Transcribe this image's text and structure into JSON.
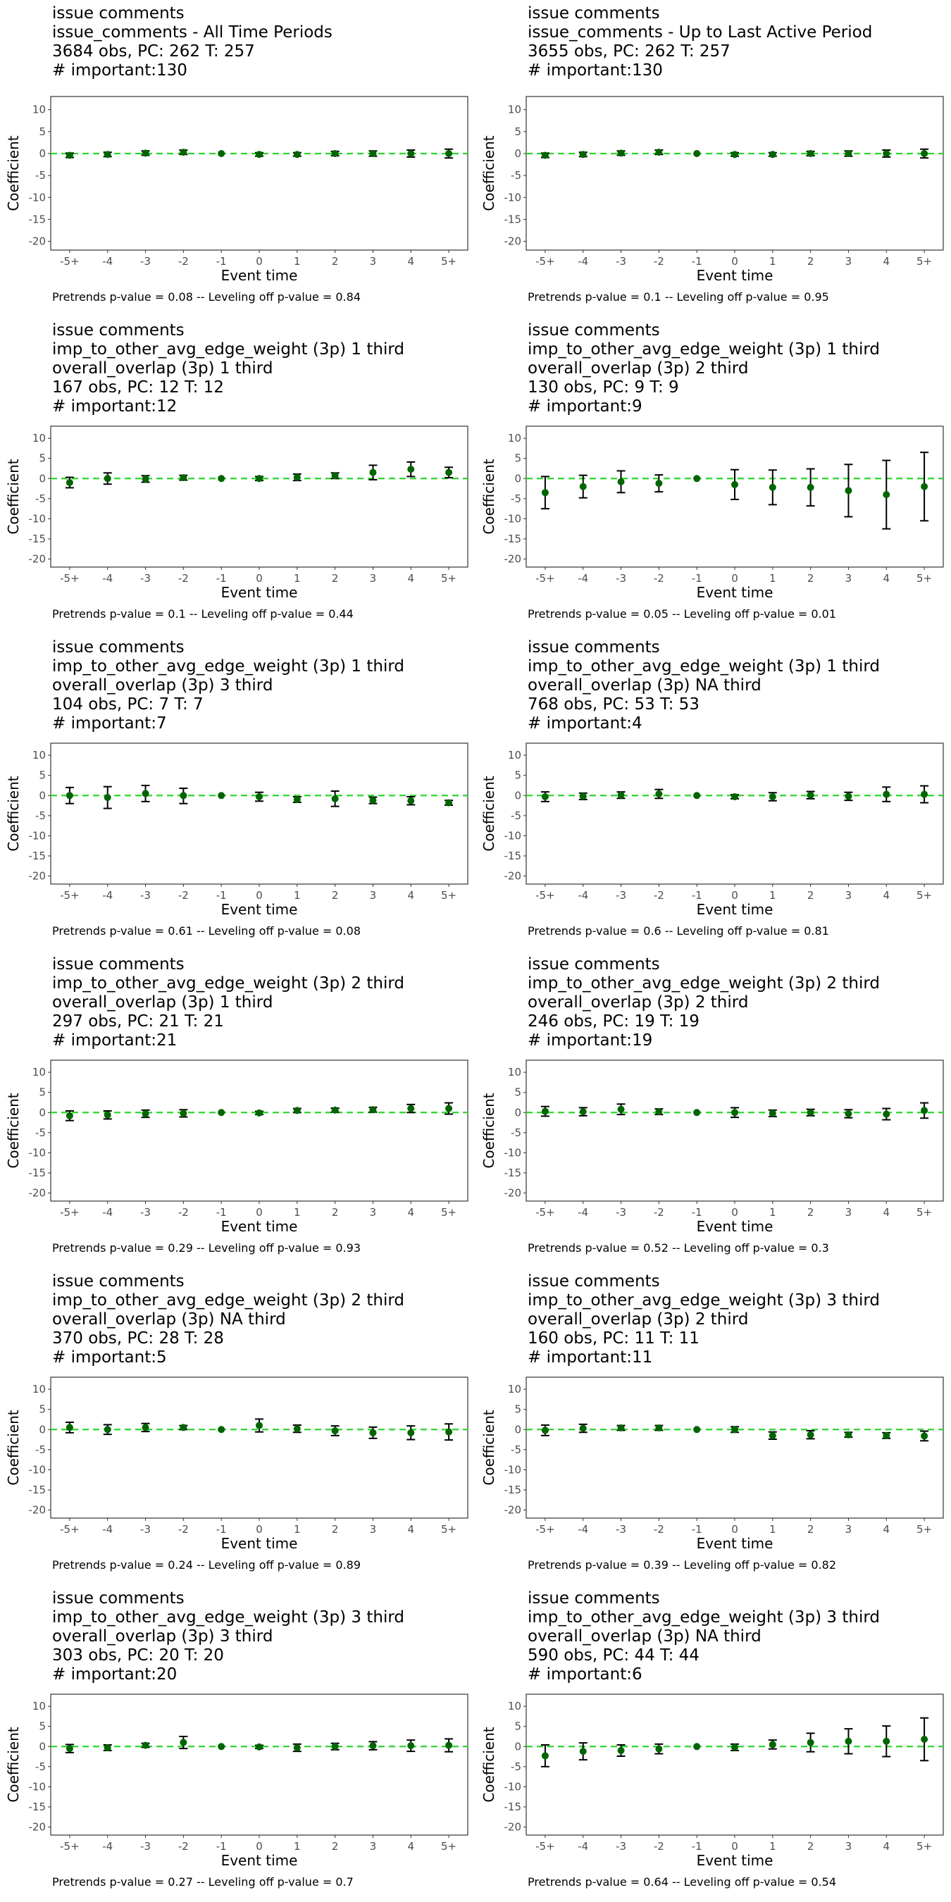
{
  "chart_data": [
    {
      "type": "scatter",
      "title_lines": [
        "issue comments",
        "issue_comments - All Time Periods",
        "3684 obs, PC: 262 T: 257",
        "# important:130"
      ],
      "xlabel": "Event time",
      "ylabel": "Coefficient",
      "categories": [
        "-5+",
        "-4",
        "-3",
        "-2",
        "-1",
        "0",
        "1",
        "2",
        "3",
        "4",
        "5+"
      ],
      "yticks": [
        10,
        5,
        0,
        -5,
        -10,
        -15,
        -20
      ],
      "ylim": [
        -22,
        13
      ],
      "reference_line": 0,
      "values": [
        -0.4,
        -0.2,
        0.1,
        0.3,
        0,
        -0.2,
        -0.2,
        0,
        0,
        0,
        0
      ],
      "lower": [
        -0.9,
        -0.7,
        -0.4,
        -0.2,
        0,
        -0.6,
        -0.6,
        -0.5,
        -0.6,
        -0.8,
        -1.0
      ],
      "upper": [
        0.1,
        0.3,
        0.6,
        0.8,
        0,
        0.2,
        0.2,
        0.5,
        0.6,
        0.8,
        1.0
      ],
      "footer": "Pretrends p-value = 0.08 -- Leveling off p-value = 0.84"
    },
    {
      "type": "scatter",
      "title_lines": [
        "issue comments",
        "issue_comments - Up to Last Active Period",
        "3655 obs, PC: 262 T: 257",
        "# important:130"
      ],
      "xlabel": "Event time",
      "ylabel": "Coefficient",
      "categories": [
        "-5+",
        "-4",
        "-3",
        "-2",
        "-1",
        "0",
        "1",
        "2",
        "3",
        "4",
        "5+"
      ],
      "yticks": [
        10,
        5,
        0,
        -5,
        -10,
        -15,
        -20
      ],
      "ylim": [
        -22,
        13
      ],
      "reference_line": 0,
      "values": [
        -0.4,
        -0.2,
        0.1,
        0.3,
        0,
        -0.2,
        -0.2,
        0,
        0,
        0,
        0
      ],
      "lower": [
        -0.9,
        -0.7,
        -0.4,
        -0.2,
        0,
        -0.6,
        -0.6,
        -0.5,
        -0.6,
        -0.8,
        -1.0
      ],
      "upper": [
        0.1,
        0.3,
        0.6,
        0.8,
        0,
        0.2,
        0.2,
        0.5,
        0.6,
        0.8,
        1.0
      ],
      "footer": "Pretrends p-value = 0.1 -- Leveling off p-value = 0.95"
    },
    {
      "type": "scatter",
      "title_lines": [
        "issue comments",
        "imp_to_other_avg_edge_weight (3p) 1 third",
        "overall_overlap (3p) 1 third",
        "167 obs, PC: 12 T: 12",
        "# important:12"
      ],
      "xlabel": "Event time",
      "ylabel": "Coefficient",
      "categories": [
        "-5+",
        "-4",
        "-3",
        "-2",
        "-1",
        "0",
        "1",
        "2",
        "3",
        "4",
        "5+"
      ],
      "yticks": [
        10,
        5,
        0,
        -5,
        -10,
        -15,
        -20
      ],
      "ylim": [
        -22,
        13
      ],
      "reference_line": 0,
      "values": [
        -1.0,
        0,
        -0.1,
        0.2,
        0,
        0,
        0.3,
        0.7,
        1.5,
        2.3,
        1.5
      ],
      "lower": [
        -2.3,
        -1.4,
        -0.9,
        -0.4,
        0,
        -0.5,
        -0.5,
        0,
        -0.3,
        0.5,
        0.2
      ],
      "upper": [
        0.3,
        1.4,
        0.7,
        0.8,
        0,
        0.5,
        1.1,
        1.4,
        3.3,
        4.1,
        2.8
      ],
      "footer": "Pretrends p-value = 0.1 -- Leveling off p-value = 0.44"
    },
    {
      "type": "scatter",
      "title_lines": [
        "issue comments",
        "imp_to_other_avg_edge_weight (3p) 1 third",
        "overall_overlap (3p) 2 third",
        "130 obs, PC: 9 T: 9",
        "# important:9"
      ],
      "xlabel": "Event time",
      "ylabel": "Coefficient",
      "categories": [
        "-5+",
        "-4",
        "-3",
        "-2",
        "-1",
        "0",
        "1",
        "2",
        "3",
        "4",
        "5+"
      ],
      "yticks": [
        10,
        5,
        0,
        -5,
        -10,
        -15,
        -20
      ],
      "ylim": [
        -22,
        13
      ],
      "reference_line": 0,
      "values": [
        -3.5,
        -2.0,
        -0.8,
        -1.2,
        0,
        -1.5,
        -2.2,
        -2.2,
        -3.0,
        -4.0,
        -2.0
      ],
      "lower": [
        -7.5,
        -4.8,
        -3.5,
        -3.3,
        0,
        -5.2,
        -6.5,
        -6.8,
        -9.5,
        -12.5,
        -10.5
      ],
      "upper": [
        0.5,
        0.8,
        1.9,
        0.9,
        0,
        2.2,
        2.1,
        2.4,
        3.5,
        4.5,
        6.5
      ],
      "footer": "Pretrends p-value = 0.05 -- Leveling off p-value = 0.01"
    },
    {
      "type": "scatter",
      "title_lines": [
        "issue comments",
        "imp_to_other_avg_edge_weight (3p) 1 third",
        "overall_overlap (3p) 3 third",
        "104 obs, PC: 7 T: 7",
        "# important:7"
      ],
      "xlabel": "Event time",
      "ylabel": "Coefficient",
      "categories": [
        "-5+",
        "-4",
        "-3",
        "-2",
        "-1",
        "0",
        "1",
        "2",
        "3",
        "4",
        "5+"
      ],
      "yticks": [
        10,
        5,
        0,
        -5,
        -10,
        -15,
        -20
      ],
      "ylim": [
        -22,
        13
      ],
      "reference_line": 0,
      "values": [
        0,
        -0.5,
        0.5,
        0,
        0,
        -0.3,
        -1.0,
        -0.8,
        -1.2,
        -1.3,
        -1.8
      ],
      "lower": [
        -2.0,
        -3.2,
        -1.5,
        -2.0,
        0,
        -1.4,
        -1.7,
        -2.7,
        -2.0,
        -2.3,
        -2.4
      ],
      "upper": [
        2.0,
        2.2,
        2.5,
        1.8,
        0,
        0.8,
        -0.3,
        1.1,
        -0.4,
        -0.3,
        -1.2
      ],
      "footer": "Pretrends p-value = 0.61 -- Leveling off p-value = 0.08"
    },
    {
      "type": "scatter",
      "title_lines": [
        "issue comments",
        "imp_to_other_avg_edge_weight (3p) 1 third",
        "overall_overlap (3p) NA third",
        "768 obs, PC: 53 T: 53",
        "# important:4"
      ],
      "xlabel": "Event time",
      "ylabel": "Coefficient",
      "categories": [
        "-5+",
        "-4",
        "-3",
        "-2",
        "-1",
        "0",
        "1",
        "2",
        "3",
        "4",
        "5+"
      ],
      "yticks": [
        10,
        5,
        0,
        -5,
        -10,
        -15,
        -20
      ],
      "ylim": [
        -22,
        13
      ],
      "reference_line": 0,
      "values": [
        -0.3,
        -0.2,
        0.1,
        0.4,
        0,
        -0.3,
        -0.3,
        0.1,
        -0.2,
        0.3,
        0.3
      ],
      "lower": [
        -1.5,
        -1.0,
        -0.7,
        -0.7,
        0,
        -0.8,
        -1.3,
        -0.8,
        -1.2,
        -1.5,
        -1.8
      ],
      "upper": [
        0.9,
        0.6,
        0.9,
        1.5,
        0,
        0.2,
        0.7,
        1.0,
        0.8,
        2.1,
        2.4
      ],
      "footer": "Pretrends p-value = 0.6 -- Leveling off p-value = 0.81"
    },
    {
      "type": "scatter",
      "title_lines": [
        "issue comments",
        "imp_to_other_avg_edge_weight (3p) 2 third",
        "overall_overlap (3p) 1 third",
        "297 obs, PC: 21 T: 21",
        "# important:21"
      ],
      "xlabel": "Event time",
      "ylabel": "Coefficient",
      "categories": [
        "-5+",
        "-4",
        "-3",
        "-2",
        "-1",
        "0",
        "1",
        "2",
        "3",
        "4",
        "5+"
      ],
      "yticks": [
        10,
        5,
        0,
        -5,
        -10,
        -15,
        -20
      ],
      "ylim": [
        -22,
        13
      ],
      "reference_line": 0,
      "values": [
        -0.8,
        -0.6,
        -0.3,
        -0.2,
        0,
        -0.1,
        0.5,
        0.6,
        0.7,
        1.0,
        1.0
      ],
      "lower": [
        -2.0,
        -1.6,
        -1.2,
        -1.1,
        0,
        -0.5,
        0,
        0.1,
        0.1,
        0,
        -0.4
      ],
      "upper": [
        0.4,
        0.4,
        0.6,
        0.7,
        0,
        0.3,
        1.0,
        1.1,
        1.3,
        2.0,
        2.4
      ],
      "footer": "Pretrends p-value = 0.29 -- Leveling off p-value = 0.93"
    },
    {
      "type": "scatter",
      "title_lines": [
        "issue comments",
        "imp_to_other_avg_edge_weight (3p) 2 third",
        "overall_overlap (3p) 2 third",
        "246 obs, PC: 19 T: 19",
        "# important:19"
      ],
      "xlabel": "Event time",
      "ylabel": "Coefficient",
      "categories": [
        "-5+",
        "-4",
        "-3",
        "-2",
        "-1",
        "0",
        "1",
        "2",
        "3",
        "4",
        "5+"
      ],
      "yticks": [
        10,
        5,
        0,
        -5,
        -10,
        -15,
        -20
      ],
      "ylim": [
        -22,
        13
      ],
      "reference_line": 0,
      "values": [
        0.3,
        0.2,
        0.8,
        0.2,
        0,
        0,
        -0.2,
        0,
        -0.3,
        -0.4,
        0.5
      ],
      "lower": [
        -0.9,
        -0.8,
        -0.5,
        -0.5,
        0,
        -1.2,
        -1.0,
        -0.8,
        -1.3,
        -1.8,
        -1.4
      ],
      "upper": [
        1.5,
        1.2,
        2.1,
        0.9,
        0,
        1.2,
        0.6,
        0.8,
        0.7,
        1.0,
        2.4
      ],
      "footer": "Pretrends p-value = 0.52 -- Leveling off p-value = 0.3"
    },
    {
      "type": "scatter",
      "title_lines": [
        "issue comments",
        "imp_to_other_avg_edge_weight (3p) 2 third",
        "overall_overlap (3p) NA third",
        "370 obs, PC: 28 T: 28",
        "# important:5"
      ],
      "xlabel": "Event time",
      "ylabel": "Coefficient",
      "categories": [
        "-5+",
        "-4",
        "-3",
        "-2",
        "-1",
        "0",
        "1",
        "2",
        "3",
        "4",
        "5+"
      ],
      "yticks": [
        10,
        5,
        0,
        -5,
        -10,
        -15,
        -20
      ],
      "ylim": [
        -22,
        13
      ],
      "reference_line": 0,
      "values": [
        0.5,
        0,
        0.5,
        0.5,
        0,
        1.0,
        0.2,
        -0.3,
        -0.8,
        -0.8,
        -0.6
      ],
      "lower": [
        -0.8,
        -1.2,
        -0.5,
        0,
        0,
        -0.6,
        -0.7,
        -1.5,
        -2.2,
        -2.5,
        -2.6
      ],
      "upper": [
        1.8,
        1.2,
        1.5,
        1.0,
        0,
        2.6,
        1.1,
        0.9,
        0.6,
        0.9,
        1.4
      ],
      "footer": "Pretrends p-value = 0.24 -- Leveling off p-value = 0.89"
    },
    {
      "type": "scatter",
      "title_lines": [
        "issue comments",
        "imp_to_other_avg_edge_weight (3p) 3 third",
        "overall_overlap (3p) 2 third",
        "160 obs, PC: 11 T: 11",
        "# important:11"
      ],
      "xlabel": "Event time",
      "ylabel": "Coefficient",
      "categories": [
        "-5+",
        "-4",
        "-3",
        "-2",
        "-1",
        "0",
        "1",
        "2",
        "3",
        "4",
        "5+"
      ],
      "yticks": [
        10,
        5,
        0,
        -5,
        -10,
        -15,
        -20
      ],
      "ylim": [
        -22,
        13
      ],
      "reference_line": 0,
      "values": [
        -0.2,
        0.3,
        0.4,
        0.4,
        0,
        0,
        -1.5,
        -1.3,
        -1.3,
        -1.5,
        -1.6
      ],
      "lower": [
        -1.5,
        -0.7,
        -0.2,
        -0.2,
        0,
        -0.7,
        -2.4,
        -2.3,
        -1.9,
        -2.2,
        -2.8
      ],
      "upper": [
        1.1,
        1.3,
        1.0,
        1.0,
        0,
        0.7,
        -0.6,
        -0.3,
        -0.7,
        -0.8,
        -0.4
      ],
      "footer": "Pretrends p-value = 0.39 -- Leveling off p-value = 0.82"
    },
    {
      "type": "scatter",
      "title_lines": [
        "issue comments",
        "imp_to_other_avg_edge_weight (3p) 3 third",
        "overall_overlap (3p) 3 third",
        "303 obs, PC: 20 T: 20",
        "# important:20"
      ],
      "xlabel": "Event time",
      "ylabel": "Coefficient",
      "categories": [
        "-5+",
        "-4",
        "-3",
        "-2",
        "-1",
        "0",
        "1",
        "2",
        "3",
        "4",
        "5+"
      ],
      "yticks": [
        10,
        5,
        0,
        -5,
        -10,
        -15,
        -20
      ],
      "ylim": [
        -22,
        13
      ],
      "reference_line": 0,
      "values": [
        -0.5,
        -0.3,
        0.3,
        1.0,
        0,
        -0.1,
        -0.3,
        0,
        0.2,
        0.2,
        0.3
      ],
      "lower": [
        -1.5,
        -1.0,
        -0.2,
        -0.5,
        0,
        -0.5,
        -1.2,
        -0.8,
        -0.8,
        -1.2,
        -1.3
      ],
      "upper": [
        0.5,
        0.4,
        0.8,
        2.5,
        0,
        0.3,
        0.6,
        0.8,
        1.2,
        1.6,
        1.9
      ],
      "footer": "Pretrends p-value = 0.27 -- Leveling off p-value = 0.7"
    },
    {
      "type": "scatter",
      "title_lines": [
        "issue comments",
        "imp_to_other_avg_edge_weight (3p) 3 third",
        "overall_overlap (3p) NA third",
        "590 obs, PC: 44 T: 44",
        "# important:6"
      ],
      "xlabel": "Event time",
      "ylabel": "Coefficient",
      "categories": [
        "-5+",
        "-4",
        "-3",
        "-2",
        "-1",
        "0",
        "1",
        "2",
        "3",
        "4",
        "5+"
      ],
      "yticks": [
        10,
        5,
        0,
        -5,
        -10,
        -15,
        -20
      ],
      "ylim": [
        -22,
        13
      ],
      "reference_line": 0,
      "values": [
        -2.3,
        -1.2,
        -1.0,
        -0.6,
        0,
        -0.2,
        0.5,
        1.0,
        1.3,
        1.3,
        1.8
      ],
      "lower": [
        -5.0,
        -3.3,
        -2.4,
        -1.8,
        0,
        -1.0,
        -0.6,
        -1.3,
        -1.8,
        -2.5,
        -3.5
      ],
      "upper": [
        0.4,
        0.9,
        0.4,
        0.6,
        0,
        0.6,
        1.6,
        3.3,
        4.4,
        5.1,
        7.1
      ],
      "footer": "Pretrends p-value = 0.64 -- Leveling off p-value = 0.54"
    }
  ],
  "colors": {
    "point": "#006400",
    "errorbar": "#000000",
    "reference_line": "#2bd62b",
    "panel_border": "#333333",
    "axis_text": "#4d4d4d"
  }
}
